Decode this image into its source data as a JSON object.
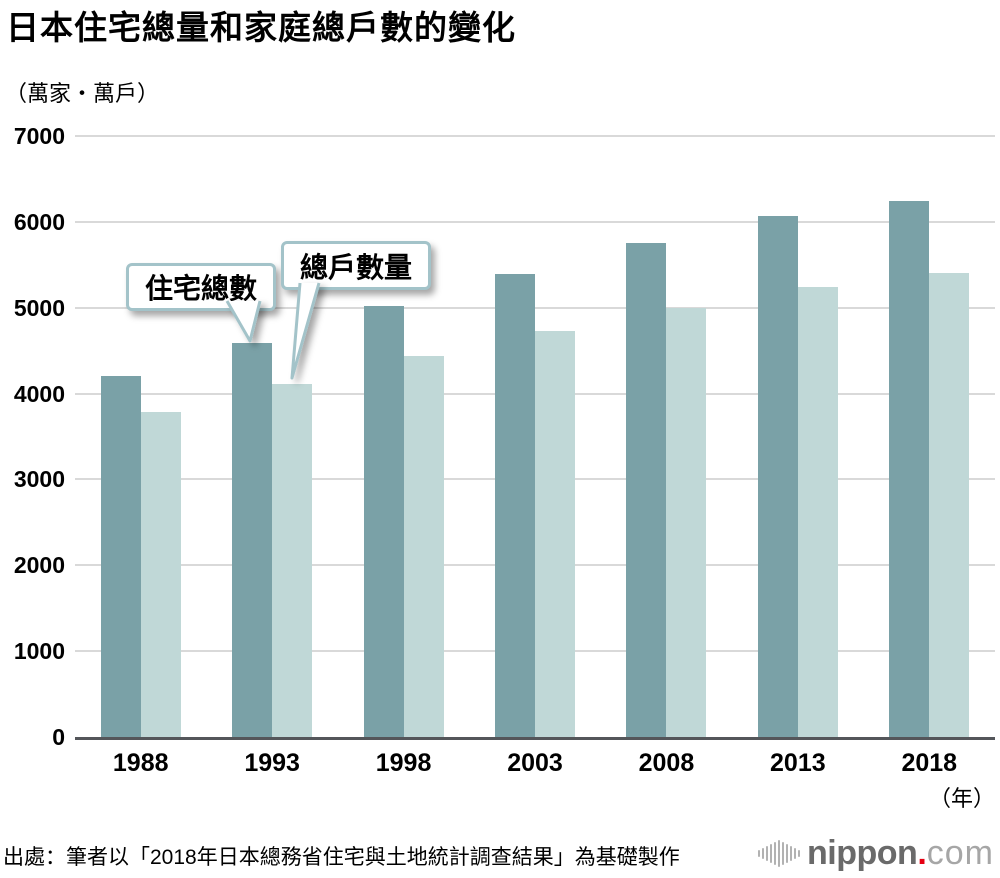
{
  "title": "日本住宅總量和家庭總戶數的變化",
  "unit_label": "（萬家・萬戶）",
  "year_suffix": "（年）",
  "source": "出處：筆者以「2018年日本總務省住宅與土地統計調查結果」為基礎製作",
  "logo": {
    "brand": "nippon",
    "dot": ".",
    "tld": "com"
  },
  "colors": {
    "housing_bar": "#7aa1a7",
    "households_bar": "#c0d8d7",
    "gridline": "#d9d9d9",
    "axis_line": "#54565a",
    "callout_border": "#a3c3c9",
    "logo_red": "#e60012"
  },
  "chart_data": {
    "type": "bar",
    "title": "日本住宅總量和家庭總戶數的變化",
    "unit": "萬家・萬戶",
    "categories": [
      "1988",
      "1993",
      "1998",
      "2003",
      "2008",
      "2013",
      "2018"
    ],
    "series": [
      {
        "name": "住宅總數",
        "color": "#7aa1a7",
        "values": [
          4201,
          4588,
          5025,
          5389,
          5759,
          6063,
          6241
        ]
      },
      {
        "name": "總戶數量",
        "color": "#c0d8d7",
        "values": [
          3781,
          4116,
          4436,
          4726,
          4999,
          5245,
          5400
        ]
      }
    ],
    "ylim": [
      0,
      7000
    ],
    "yticks": [
      "0",
      "1000",
      "2000",
      "3000",
      "4000",
      "5000",
      "6000",
      "7000"
    ],
    "xlabel_suffix": "（年）",
    "grid": true,
    "legend_position": "callout annotations on 1993 bars",
    "annotations": [
      {
        "label": "住宅總數",
        "target_series": "住宅總數",
        "target_category": "1993"
      },
      {
        "label": "總戶數量",
        "target_series": "總戶數量",
        "target_category": "1993"
      }
    ]
  }
}
